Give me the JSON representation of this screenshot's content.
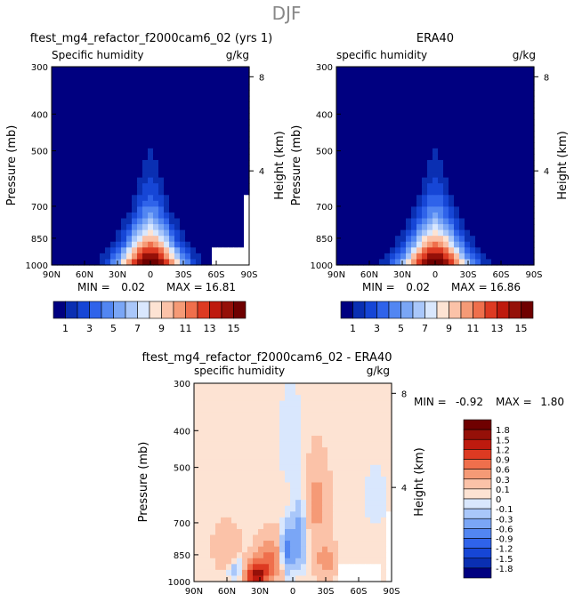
{
  "figure_title": "DJF",
  "colors": {
    "fill_scale": [
      "#000080",
      "#0a2fb2",
      "#1646d6",
      "#2f63ea",
      "#5286f2",
      "#7aa6f6",
      "#a9c7fa",
      "#d9e7fd",
      "#fde3d3",
      "#fbc2a8",
      "#f59a76",
      "#ef6f4c",
      "#dd3a22",
      "#be1a0e",
      "#951008",
      "#6f0000"
    ],
    "diff_scale": [
      "#000080",
      "#0a2fb2",
      "#1646d6",
      "#2f63ea",
      "#5286f2",
      "#7aa6f6",
      "#a9c7fa",
      "#d9e7fd",
      "#fde3d3",
      "#fbc2a8",
      "#f59a76",
      "#ef6f4c",
      "#dd3a22",
      "#be1a0e",
      "#951008",
      "#6f0000"
    ],
    "missing": "#ffffff"
  },
  "chart_data": [
    {
      "id": "panel_model",
      "type": "heatmap",
      "title": "ftest_mg4_refactor_f2000cam6_02 (yrs 1)",
      "left_label": "Specific humidity",
      "units": "g/kg",
      "ylabel": "Pressure (mb)",
      "y2label": "Height (km)",
      "x_ticks": [
        "90N",
        "60N",
        "30N",
        "0",
        "30S",
        "60S",
        "90S"
      ],
      "y_ticks": [
        "300",
        "400",
        "500",
        "700",
        "850",
        "1000"
      ],
      "y_tick_values": [
        300,
        400,
        500,
        700,
        850,
        1000
      ],
      "y2_ticks": [
        "8",
        "4"
      ],
      "y2_tick_values": [
        8,
        4
      ],
      "xlim": [
        90,
        -90
      ],
      "ylim": [
        300,
        1000
      ],
      "min_label": "MIN =",
      "min_value": "0.02",
      "max_label": "MAX =",
      "max_value": "16.81",
      "peak": 16.81,
      "peak_lat": 0,
      "hw_surface": 30,
      "hw_upper": 5
    },
    {
      "id": "panel_obs",
      "type": "heatmap",
      "title": "ERA40",
      "left_label": "specific humidity",
      "units": "g/kg",
      "ylabel": "Pressure (mb)",
      "y2label": "Height (km)",
      "x_ticks": [
        "90N",
        "60N",
        "30N",
        "0",
        "30S",
        "60S",
        "90S"
      ],
      "y_ticks": [
        "300",
        "400",
        "500",
        "700",
        "850",
        "1000"
      ],
      "y_tick_values": [
        300,
        400,
        500,
        700,
        850,
        1000
      ],
      "y2_ticks": [
        "8",
        "4"
      ],
      "y2_tick_values": [
        8,
        4
      ],
      "xlim": [
        90,
        -90
      ],
      "ylim": [
        300,
        1000
      ],
      "min_label": "MIN =",
      "min_value": "0.02",
      "max_label": "MAX =",
      "max_value": "16.86",
      "peak": 16.86,
      "peak_lat": 0,
      "hw_surface": 31,
      "hw_upper": 5
    },
    {
      "id": "panel_diff",
      "type": "heatmap",
      "title": "ftest_mg4_refactor_f2000cam6_02 - ERA40",
      "left_label": "specific humidity",
      "units": "g/kg",
      "ylabel": "Pressure (mb)",
      "y2label": "Height (km)",
      "x_ticks": [
        "90N",
        "60N",
        "30N",
        "0",
        "30S",
        "60S",
        "90S"
      ],
      "y_ticks": [
        "300",
        "400",
        "500",
        "700",
        "850",
        "1000"
      ],
      "y_tick_values": [
        300,
        400,
        500,
        700,
        850,
        1000
      ],
      "y2_ticks": [
        "8",
        "4"
      ],
      "y2_tick_values": [
        8,
        4
      ],
      "xlim": [
        90,
        -90
      ],
      "ylim": [
        300,
        1000
      ],
      "min_label": "MIN =",
      "min_value": "-0.92",
      "max_label": "MAX =",
      "max_value": "1.80",
      "features": [
        {
          "lat": 33,
          "p": 960,
          "amp": 1.5,
          "wlat": 9,
          "wp": 70
        },
        {
          "lat": 20,
          "p": 880,
          "amp": 0.6,
          "wlat": 12,
          "wp": 120
        },
        {
          "lat": 5,
          "p": 830,
          "amp": -0.8,
          "wlat": 6,
          "wp": 110
        },
        {
          "lat": -6,
          "p": 760,
          "amp": -0.5,
          "wlat": 6,
          "wp": 140
        },
        {
          "lat": 2,
          "p": 420,
          "amp": -0.15,
          "wlat": 10,
          "wp": 130
        },
        {
          "lat": -22,
          "p": 620,
          "amp": 0.35,
          "wlat": 10,
          "wp": 150
        },
        {
          "lat": -30,
          "p": 880,
          "amp": 0.4,
          "wlat": 9,
          "wp": 90
        },
        {
          "lat": 52,
          "p": 930,
          "amp": -0.3,
          "wlat": 8,
          "wp": 60
        },
        {
          "lat": -75,
          "p": 600,
          "amp": -0.15,
          "wlat": 10,
          "wp": 100
        },
        {
          "lat": 60,
          "p": 820,
          "amp": 0.2,
          "wlat": 12,
          "wp": 120
        }
      ]
    }
  ],
  "colorbar_main": {
    "ticks": [
      "1",
      "3",
      "5",
      "7",
      "9",
      "11",
      "13",
      "15"
    ],
    "levels": [
      0,
      1,
      2,
      3,
      4,
      5,
      6,
      7,
      8,
      9,
      10,
      11,
      12,
      13,
      14,
      15
    ]
  },
  "colorbar_diff": {
    "ticks": [
      "1.8",
      "1.5",
      "1.2",
      "0.9",
      "0.6",
      "0.3",
      "0.1",
      "0",
      "-0.1",
      "-0.3",
      "-0.6",
      "-0.9",
      "-1.2",
      "-1.5",
      "-1.8"
    ],
    "levels": [
      1.8,
      1.5,
      1.2,
      0.9,
      0.6,
      0.3,
      0.1,
      0,
      -0.1,
      -0.3,
      -0.6,
      -0.9,
      -1.2,
      -1.5,
      -1.8
    ]
  }
}
